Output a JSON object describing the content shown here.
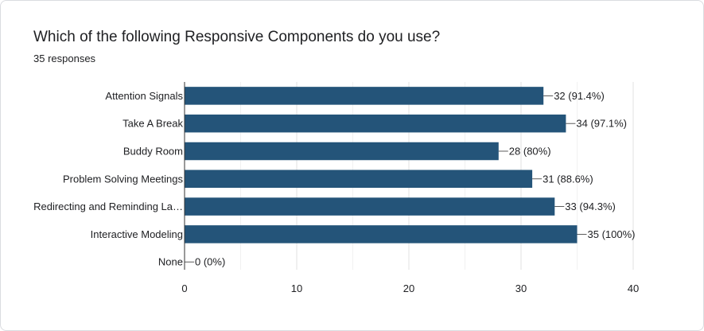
{
  "header": {
    "title": "Which of the following Responsive Components do you use?",
    "subtitle": "35 responses"
  },
  "chart_data": {
    "type": "bar",
    "orientation": "horizontal",
    "categories": [
      "Attention Signals",
      "Take A Break",
      "Buddy Room",
      "Problem Solving Meetings",
      "Redirecting and Reminding La…",
      "Interactive Modeling",
      "None"
    ],
    "values": [
      32,
      34,
      28,
      31,
      33,
      35,
      0
    ],
    "value_labels": [
      "32 (91.4%)",
      "34 (97.1%)",
      "28 (80%)",
      "31 (88.6%)",
      "33 (94.3%)",
      "35 (100%)",
      "0 (0%)"
    ],
    "xlim": [
      0,
      40
    ],
    "xticks": [
      0,
      10,
      20,
      30,
      40
    ],
    "bar_color": "#245479",
    "grid": true
  }
}
